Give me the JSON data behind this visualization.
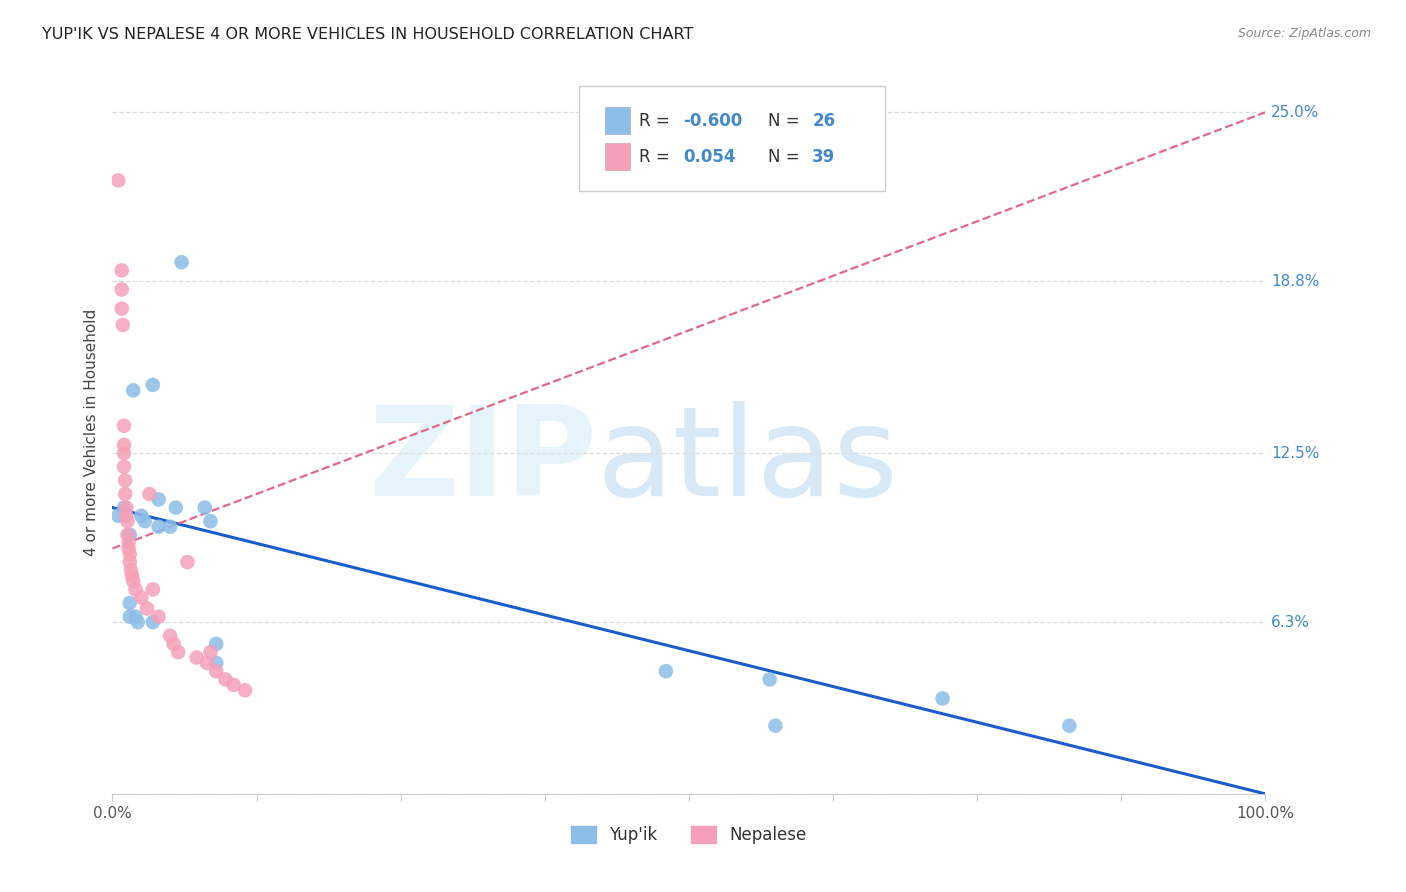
{
  "title": "YUP'IK VS NEPALESE 4 OR MORE VEHICLES IN HOUSEHOLD CORRELATION CHART",
  "source": "Source: ZipAtlas.com",
  "ylabel": "4 or more Vehicles in Household",
  "xlim": [
    0,
    100
  ],
  "ylim": [
    0,
    26.5
  ],
  "ytick_vals": [
    0,
    6.3,
    12.5,
    18.8,
    25.0
  ],
  "ytick_labels_right": [
    "",
    "6.3%",
    "12.5%",
    "18.8%",
    "25.0%"
  ],
  "xtick_vals": [
    0,
    12.5,
    25,
    37.5,
    50,
    62.5,
    75,
    87.5,
    100
  ],
  "xtick_labels": [
    "0.0%",
    "",
    "",
    "",
    "",
    "",
    "",
    "",
    "100.0%"
  ],
  "yupik_color": "#8BBDE8",
  "nepalese_color": "#F5A0B8",
  "yupik_line_color": "#1A5DC8",
  "nepalese_line_color": "#E06888",
  "grid_color": "#DDDDDD",
  "right_label_color": "#4488CC",
  "label_dark_color": "#333333",
  "yupik_R_str": "-0.600",
  "yupik_N_str": "26",
  "nepalese_R_str": "0.054",
  "nepalese_N_str": "39",
  "yupik_line_x": [
    0,
    100
  ],
  "yupik_line_y": [
    10.5,
    0.0
  ],
  "nepalese_line_x": [
    0,
    100
  ],
  "nepalese_line_y": [
    9.0,
    25.0
  ],
  "yupik_points": [
    [
      0.5,
      10.2
    ],
    [
      1.0,
      10.5
    ],
    [
      1.5,
      9.5
    ],
    [
      1.5,
      7.0
    ],
    [
      1.5,
      6.5
    ],
    [
      1.8,
      14.8
    ],
    [
      2.0,
      6.5
    ],
    [
      2.2,
      6.3
    ],
    [
      2.5,
      10.2
    ],
    [
      2.8,
      10.0
    ],
    [
      3.5,
      15.0
    ],
    [
      3.5,
      6.3
    ],
    [
      4.0,
      10.8
    ],
    [
      4.0,
      9.8
    ],
    [
      5.0,
      9.8
    ],
    [
      5.5,
      10.5
    ],
    [
      6.0,
      19.5
    ],
    [
      8.0,
      10.5
    ],
    [
      8.5,
      10.0
    ],
    [
      9.0,
      5.5
    ],
    [
      9.0,
      4.8
    ],
    [
      48.0,
      4.5
    ],
    [
      57.0,
      4.2
    ],
    [
      57.5,
      2.5
    ],
    [
      72.0,
      3.5
    ],
    [
      83.0,
      2.5
    ]
  ],
  "nepalese_points": [
    [
      0.5,
      22.5
    ],
    [
      0.8,
      19.2
    ],
    [
      0.8,
      18.5
    ],
    [
      0.8,
      17.8
    ],
    [
      0.9,
      17.2
    ],
    [
      1.0,
      13.5
    ],
    [
      1.0,
      12.8
    ],
    [
      1.0,
      12.5
    ],
    [
      1.0,
      12.0
    ],
    [
      1.1,
      11.5
    ],
    [
      1.1,
      11.0
    ],
    [
      1.2,
      10.5
    ],
    [
      1.2,
      10.2
    ],
    [
      1.3,
      10.0
    ],
    [
      1.3,
      9.5
    ],
    [
      1.4,
      9.2
    ],
    [
      1.4,
      9.0
    ],
    [
      1.5,
      8.8
    ],
    [
      1.5,
      8.5
    ],
    [
      1.6,
      8.2
    ],
    [
      1.7,
      8.0
    ],
    [
      1.8,
      7.8
    ],
    [
      2.0,
      7.5
    ],
    [
      2.5,
      7.2
    ],
    [
      3.0,
      6.8
    ],
    [
      3.2,
      11.0
    ],
    [
      3.5,
      7.5
    ],
    [
      4.0,
      6.5
    ],
    [
      5.0,
      5.8
    ],
    [
      5.3,
      5.5
    ],
    [
      5.7,
      5.2
    ],
    [
      6.5,
      8.5
    ],
    [
      7.3,
      5.0
    ],
    [
      8.2,
      4.8
    ],
    [
      8.5,
      5.2
    ],
    [
      9.0,
      4.5
    ],
    [
      9.8,
      4.2
    ],
    [
      10.5,
      4.0
    ],
    [
      11.5,
      3.8
    ]
  ]
}
